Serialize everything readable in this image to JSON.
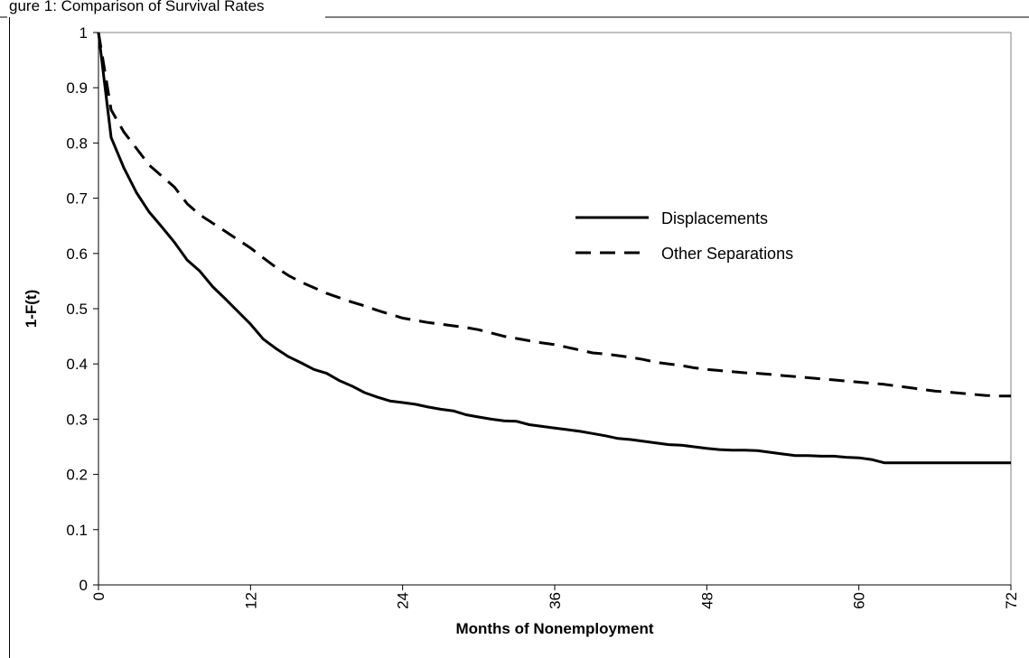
{
  "header": {
    "caption": "gure 1: Comparison of Survival Rates"
  },
  "chart_data": {
    "type": "line",
    "xlabel": "Months of Nonemployment",
    "ylabel": "1-F(t)",
    "xlim": [
      0,
      72
    ],
    "ylim": [
      0,
      1
    ],
    "x_ticks": [
      "0",
      "12",
      "24",
      "36",
      "48",
      "60",
      "72"
    ],
    "y_ticks": [
      "0",
      "0.1",
      "0.2",
      "0.3",
      "0.4",
      "0.5",
      "0.6",
      "0.7",
      "0.8",
      "0.9",
      "1"
    ],
    "grid": false,
    "legend_position": "right-middle",
    "series": [
      {
        "name": "Displacements",
        "style": "solid",
        "color": "#000000",
        "x": [
          0,
          1,
          2,
          3,
          4,
          5,
          6,
          7,
          8,
          9,
          10,
          11,
          12,
          13,
          14,
          15,
          16,
          17,
          18,
          19,
          20,
          21,
          22,
          23,
          24,
          25,
          26,
          27,
          28,
          29,
          30,
          31,
          32,
          33,
          34,
          35,
          36,
          37,
          38,
          39,
          40,
          41,
          42,
          43,
          44,
          45,
          46,
          47,
          48,
          49,
          50,
          51,
          52,
          53,
          54,
          55,
          56,
          57,
          58,
          59,
          60,
          61,
          62,
          63,
          64,
          65,
          66,
          67,
          68,
          69,
          70,
          71,
          72
        ],
        "y": [
          1.0,
          0.81,
          0.755,
          0.71,
          0.675,
          0.648,
          0.62,
          0.588,
          0.568,
          0.54,
          0.518,
          0.495,
          0.472,
          0.445,
          0.428,
          0.413,
          0.402,
          0.39,
          0.383,
          0.37,
          0.36,
          0.348,
          0.34,
          0.333,
          0.33,
          0.327,
          0.322,
          0.318,
          0.315,
          0.308,
          0.304,
          0.3,
          0.297,
          0.296,
          0.29,
          0.287,
          0.284,
          0.281,
          0.278,
          0.274,
          0.27,
          0.265,
          0.263,
          0.26,
          0.257,
          0.254,
          0.253,
          0.25,
          0.247,
          0.245,
          0.244,
          0.244,
          0.243,
          0.24,
          0.237,
          0.234,
          0.234,
          0.233,
          0.233,
          0.231,
          0.23,
          0.227,
          0.221,
          0.221,
          0.221,
          0.221,
          0.221,
          0.221,
          0.221,
          0.221,
          0.221,
          0.221,
          0.221
        ]
      },
      {
        "name": "Other Separations",
        "style": "dashed",
        "color": "#000000",
        "x": [
          0,
          1,
          2,
          3,
          4,
          5,
          6,
          7,
          8,
          9,
          10,
          11,
          12,
          13,
          14,
          15,
          16,
          17,
          18,
          19,
          20,
          21,
          22,
          23,
          24,
          25,
          26,
          27,
          28,
          29,
          30,
          31,
          32,
          33,
          34,
          35,
          36,
          37,
          38,
          39,
          40,
          41,
          42,
          43,
          44,
          45,
          46,
          47,
          48,
          49,
          50,
          51,
          52,
          53,
          54,
          55,
          56,
          57,
          58,
          59,
          60,
          61,
          62,
          63,
          64,
          65,
          66,
          67,
          68,
          69,
          70,
          71,
          72
        ],
        "y": [
          1.0,
          0.86,
          0.82,
          0.79,
          0.76,
          0.74,
          0.72,
          0.69,
          0.67,
          0.655,
          0.64,
          0.625,
          0.61,
          0.592,
          0.575,
          0.56,
          0.548,
          0.538,
          0.528,
          0.52,
          0.512,
          0.505,
          0.497,
          0.49,
          0.483,
          0.479,
          0.475,
          0.472,
          0.469,
          0.466,
          0.462,
          0.456,
          0.45,
          0.446,
          0.442,
          0.438,
          0.435,
          0.43,
          0.425,
          0.42,
          0.418,
          0.415,
          0.412,
          0.408,
          0.403,
          0.4,
          0.397,
          0.393,
          0.39,
          0.388,
          0.386,
          0.384,
          0.383,
          0.381,
          0.379,
          0.377,
          0.375,
          0.373,
          0.371,
          0.369,
          0.367,
          0.365,
          0.363,
          0.36,
          0.357,
          0.354,
          0.351,
          0.349,
          0.347,
          0.345,
          0.343,
          0.342,
          0.342
        ]
      }
    ]
  }
}
